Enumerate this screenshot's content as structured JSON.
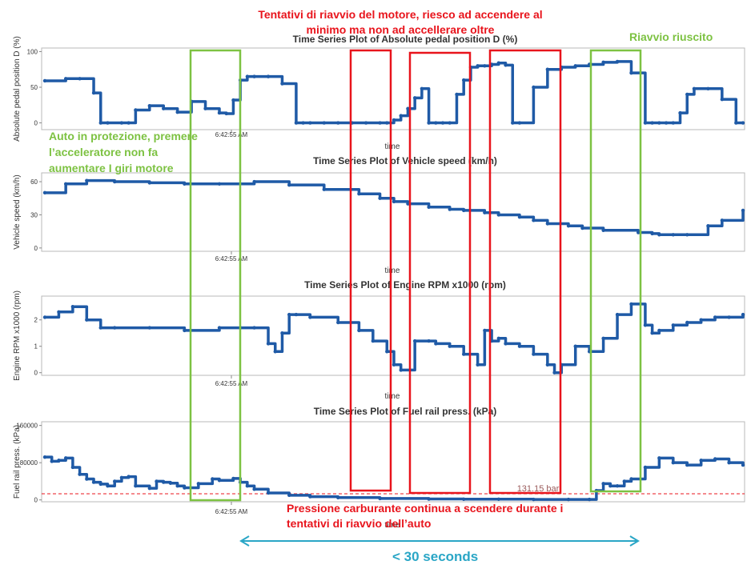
{
  "annotations": {
    "restart_attempts": "Tentativi di riavvio del motore, riesco ad accendere al minimo ma non ad accellerare oltre",
    "restart_success": "Riavvio riuscito",
    "protection_mode": "Auto in protezione, premere l’acceleratore non  fa aumentare I giri motore",
    "fuel_pressure_note": "Pressione carburante continua a scendere durante i tentativi di riavvio dell’auto",
    "duration": "< 30 seconds",
    "threshold_label": "131.15 bar"
  },
  "colors": {
    "series": "#1f5aa6",
    "highlight_red": "#e8141c",
    "highlight_green": "#7dc242",
    "arrow": "#2aa6c6",
    "threshold": "#e8141c"
  },
  "chart_data": [
    {
      "type": "line",
      "title": "Time Series Plot of Absolute pedal position D (%)",
      "ylabel": "Absolute pedal position D (%)",
      "xlabel": "time",
      "time_tick_label": "6:42:55 AM",
      "yticks": [
        0,
        50,
        100
      ],
      "ylim": [
        -5,
        105
      ],
      "x": [
        0,
        3,
        5,
        7,
        8,
        9,
        11,
        12,
        13,
        15,
        17,
        19,
        21,
        23,
        25,
        26,
        27,
        28,
        29,
        30,
        32,
        34,
        36,
        37,
        38,
        40,
        42,
        44,
        46,
        48,
        49,
        50,
        51,
        52,
        53,
        54,
        55,
        56,
        57,
        58,
        59,
        60,
        61,
        62,
        63,
        64,
        65,
        66,
        67,
        68,
        70,
        72,
        74,
        76,
        78,
        80,
        82,
        84,
        86,
        87,
        88,
        89,
        90,
        91,
        92,
        93,
        95,
        97,
        99,
        100
      ],
      "values": [
        59,
        62,
        62,
        42,
        0,
        0,
        0,
        0,
        18,
        24,
        20,
        15,
        30,
        20,
        14,
        13,
        32,
        60,
        65,
        65,
        65,
        55,
        0,
        0,
        0,
        0,
        0,
        0,
        0,
        0,
        0,
        4,
        10,
        20,
        35,
        48,
        0,
        0,
        0,
        0,
        40,
        60,
        78,
        80,
        80,
        82,
        84,
        81,
        0,
        0,
        50,
        75,
        78,
        80,
        82,
        85,
        86,
        70,
        0,
        0,
        0,
        0,
        0,
        14,
        40,
        48,
        48,
        33,
        0,
        0
      ]
    },
    {
      "type": "line",
      "title": "Time Series Plot of Vehicle speed (km/h)",
      "ylabel": "Vehicle speed (km/h)",
      "xlabel": "time",
      "time_tick_label": "6:42:55 AM",
      "yticks": [
        0,
        30,
        60
      ],
      "ylim": [
        -3,
        68
      ],
      "x": [
        0,
        3,
        6,
        10,
        15,
        20,
        25,
        30,
        35,
        40,
        45,
        48,
        50,
        52,
        55,
        58,
        60,
        63,
        65,
        68,
        70,
        72,
        75,
        77,
        80,
        85,
        87,
        88,
        90,
        92,
        95,
        97,
        100
      ],
      "values": [
        50,
        58,
        61,
        60,
        59,
        58,
        58,
        60,
        57,
        53,
        49,
        45,
        42,
        40,
        37,
        35,
        34,
        32,
        30,
        28,
        25,
        22,
        20,
        18,
        16,
        14,
        13,
        12,
        12,
        12,
        20,
        25,
        34
      ]
    },
    {
      "type": "line",
      "title": "Time Series Plot of Engine RPM x1000 (rpm)",
      "ylabel": "Engine RPM x1000 (rpm)",
      "xlabel": "time",
      "time_tick_label": "6:42:55 AM",
      "yticks": [
        0,
        1,
        2
      ],
      "ylim": [
        -0.1,
        2.9
      ],
      "x": [
        0,
        2,
        4,
        6,
        8,
        10,
        15,
        20,
        25,
        28,
        30,
        32,
        33,
        34,
        35,
        36,
        38,
        42,
        45,
        47,
        49,
        50,
        51,
        53,
        55,
        56,
        58,
        60,
        62,
        63,
        64,
        65,
        66,
        68,
        70,
        72,
        73,
        74,
        76,
        78,
        80,
        82,
        84,
        86,
        87,
        88,
        90,
        92,
        94,
        96,
        98,
        100
      ],
      "values": [
        2.1,
        2.3,
        2.5,
        2.0,
        1.7,
        1.7,
        1.7,
        1.6,
        1.7,
        1.7,
        1.7,
        1.1,
        0.8,
        1.5,
        2.2,
        2.2,
        2.1,
        1.9,
        1.6,
        1.2,
        0.8,
        0.3,
        0.1,
        1.2,
        1.2,
        1.1,
        1.0,
        0.7,
        0.3,
        1.6,
        1.2,
        1.3,
        1.1,
        1.0,
        0.7,
        0.3,
        0.0,
        0.3,
        1.0,
        0.8,
        1.3,
        2.2,
        2.6,
        1.8,
        1.5,
        1.6,
        1.8,
        1.9,
        2.0,
        2.1,
        2.1,
        2.2
      ]
    },
    {
      "type": "line",
      "title": "Time Series Plot of Fuel rail press. (kPa)",
      "ylabel": "Fuel rail press. (kPa)",
      "xlabel": "time",
      "time_tick_label": "6:42:55 AM",
      "yticks": [
        0,
        80000,
        160000
      ],
      "ytick_labels": [
        "0",
        "80000",
        "160000"
      ],
      "ylim": [
        -4000,
        168000
      ],
      "threshold": 13115,
      "x": [
        0,
        1,
        2,
        3,
        4,
        5,
        6,
        7,
        8,
        9,
        10,
        11,
        12,
        13,
        15,
        16,
        17,
        18,
        19,
        20,
        22,
        24,
        25,
        27,
        28,
        29,
        30,
        32,
        35,
        38,
        42,
        48,
        55,
        60,
        65,
        70,
        75,
        78,
        79,
        80,
        81,
        82,
        83,
        84,
        86,
        88,
        90,
        92,
        94,
        96,
        98,
        100
      ],
      "values": [
        92000,
        83000,
        85000,
        90000,
        70000,
        55000,
        45000,
        38000,
        34000,
        30000,
        40000,
        48000,
        50000,
        30000,
        25000,
        40000,
        38000,
        36000,
        30000,
        26000,
        35000,
        45000,
        42000,
        46000,
        38000,
        30000,
        23000,
        15000,
        10000,
        7000,
        5000,
        3000,
        2000,
        1500,
        1500,
        1000,
        1000,
        1000,
        20000,
        35000,
        30000,
        30000,
        40000,
        45000,
        70000,
        90000,
        80000,
        75000,
        85000,
        88000,
        80000,
        75000
      ]
    }
  ]
}
